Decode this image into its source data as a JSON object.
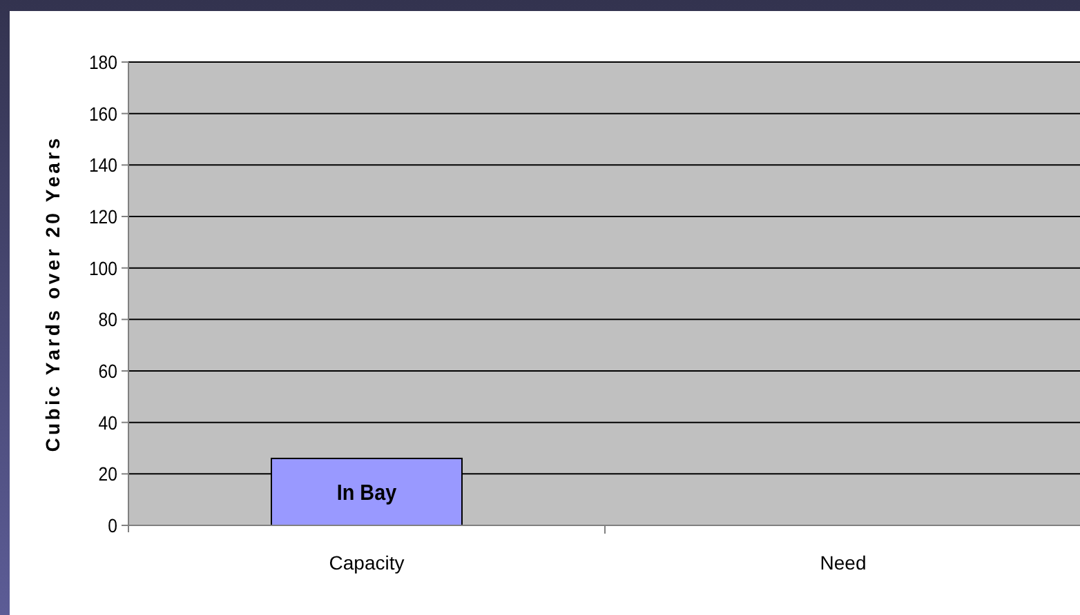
{
  "chart_data": {
    "type": "bar",
    "ylabel": "Cubic Yards over 20 Years",
    "categories": [
      "Capacity",
      "Need"
    ],
    "series": [
      {
        "name": "In Bay",
        "color": "#9999ff",
        "values": [
          26,
          null
        ]
      }
    ],
    "ylim": [
      0,
      180
    ],
    "yticks": [
      0,
      20,
      40,
      60,
      80,
      100,
      120,
      140,
      160,
      180
    ],
    "grid": "y"
  }
}
